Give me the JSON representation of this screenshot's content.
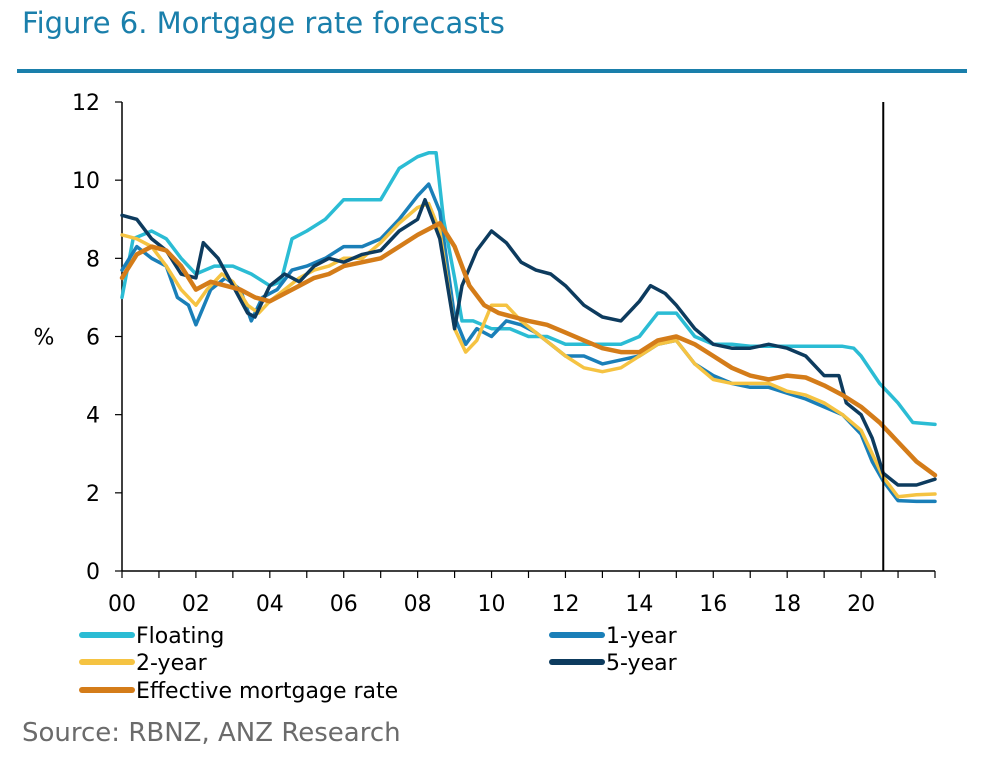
{
  "title": "Figure 6. Mortgage rate forecasts",
  "source": "Source: RBNZ, ANZ Research",
  "chart_data": {
    "type": "line",
    "ylabel": "%",
    "xlim": [
      0,
      22
    ],
    "ylim": [
      0,
      12
    ],
    "y_ticks": [
      0,
      2,
      4,
      6,
      8,
      10,
      12
    ],
    "x_ticks": [
      0,
      2,
      4,
      6,
      8,
      10,
      12,
      14,
      16,
      18,
      20
    ],
    "x_tick_labels": [
      "00",
      "02",
      "04",
      "06",
      "08",
      "10",
      "12",
      "14",
      "16",
      "18",
      "20"
    ],
    "grid": false,
    "legend_placement": "bottom",
    "forecast_marker_x": 20.6,
    "series": [
      {
        "name": "Floating",
        "color": "#2bbcd4",
        "points": [
          [
            0,
            7.0
          ],
          [
            0.3,
            8.5
          ],
          [
            0.8,
            8.7
          ],
          [
            1.2,
            8.5
          ],
          [
            1.6,
            8.0
          ],
          [
            2.0,
            7.6
          ],
          [
            2.5,
            7.8
          ],
          [
            3.0,
            7.8
          ],
          [
            3.5,
            7.6
          ],
          [
            4.0,
            7.3
          ],
          [
            4.3,
            7.4
          ],
          [
            4.6,
            8.5
          ],
          [
            5.0,
            8.7
          ],
          [
            5.5,
            9.0
          ],
          [
            6.0,
            9.5
          ],
          [
            6.5,
            9.5
          ],
          [
            7.0,
            9.5
          ],
          [
            7.5,
            10.3
          ],
          [
            8.0,
            10.6
          ],
          [
            8.3,
            10.7
          ],
          [
            8.5,
            10.7
          ],
          [
            8.7,
            9.0
          ],
          [
            9.0,
            7.5
          ],
          [
            9.2,
            6.4
          ],
          [
            9.5,
            6.4
          ],
          [
            10.0,
            6.2
          ],
          [
            10.5,
            6.2
          ],
          [
            11.0,
            6.0
          ],
          [
            11.5,
            6.0
          ],
          [
            12.0,
            5.8
          ],
          [
            12.5,
            5.8
          ],
          [
            13.0,
            5.8
          ],
          [
            13.5,
            5.8
          ],
          [
            14.0,
            6.0
          ],
          [
            14.5,
            6.6
          ],
          [
            15.0,
            6.6
          ],
          [
            15.5,
            6.0
          ],
          [
            16.0,
            5.8
          ],
          [
            16.5,
            5.8
          ],
          [
            17.0,
            5.75
          ],
          [
            17.5,
            5.75
          ],
          [
            18.0,
            5.75
          ],
          [
            18.5,
            5.75
          ],
          [
            19.0,
            5.75
          ],
          [
            19.5,
            5.75
          ],
          [
            19.8,
            5.7
          ],
          [
            20.0,
            5.5
          ],
          [
            20.5,
            4.8
          ],
          [
            21.0,
            4.3
          ],
          [
            21.4,
            3.8
          ],
          [
            22.0,
            3.75
          ]
        ]
      },
      {
        "name": "1-year",
        "color": "#1a7fb8",
        "points": [
          [
            0,
            7.7
          ],
          [
            0.4,
            8.3
          ],
          [
            0.8,
            8.0
          ],
          [
            1.2,
            7.8
          ],
          [
            1.5,
            7.0
          ],
          [
            1.8,
            6.8
          ],
          [
            2.0,
            6.3
          ],
          [
            2.4,
            7.2
          ],
          [
            2.8,
            7.5
          ],
          [
            3.2,
            7.2
          ],
          [
            3.5,
            6.4
          ],
          [
            3.8,
            7.0
          ],
          [
            4.2,
            7.2
          ],
          [
            4.6,
            7.7
          ],
          [
            5.0,
            7.8
          ],
          [
            5.5,
            8.0
          ],
          [
            6.0,
            8.3
          ],
          [
            6.5,
            8.3
          ],
          [
            7.0,
            8.5
          ],
          [
            7.5,
            9.0
          ],
          [
            8.0,
            9.6
          ],
          [
            8.3,
            9.9
          ],
          [
            8.6,
            9.2
          ],
          [
            9.0,
            6.5
          ],
          [
            9.3,
            5.8
          ],
          [
            9.6,
            6.2
          ],
          [
            10.0,
            6.0
          ],
          [
            10.4,
            6.4
          ],
          [
            10.8,
            6.3
          ],
          [
            11.2,
            6.1
          ],
          [
            11.6,
            5.8
          ],
          [
            12.0,
            5.5
          ],
          [
            12.5,
            5.5
          ],
          [
            13.0,
            5.3
          ],
          [
            13.5,
            5.4
          ],
          [
            14.0,
            5.5
          ],
          [
            14.5,
            5.8
          ],
          [
            15.0,
            5.9
          ],
          [
            15.5,
            5.3
          ],
          [
            16.0,
            5.0
          ],
          [
            16.5,
            4.8
          ],
          [
            17.0,
            4.7
          ],
          [
            17.5,
            4.7
          ],
          [
            18.0,
            4.55
          ],
          [
            18.5,
            4.4
          ],
          [
            19.0,
            4.2
          ],
          [
            19.5,
            4.0
          ],
          [
            20.0,
            3.5
          ],
          [
            20.3,
            2.8
          ],
          [
            20.6,
            2.3
          ],
          [
            21.0,
            1.8
          ],
          [
            21.5,
            1.78
          ],
          [
            22.0,
            1.78
          ]
        ]
      },
      {
        "name": "2-year",
        "color": "#f5c342",
        "points": [
          [
            0,
            8.6
          ],
          [
            0.4,
            8.5
          ],
          [
            0.8,
            8.3
          ],
          [
            1.2,
            7.8
          ],
          [
            1.6,
            7.2
          ],
          [
            2.0,
            6.8
          ],
          [
            2.3,
            7.2
          ],
          [
            2.7,
            7.6
          ],
          [
            3.0,
            7.4
          ],
          [
            3.4,
            6.8
          ],
          [
            3.7,
            6.6
          ],
          [
            4.0,
            6.9
          ],
          [
            4.4,
            7.2
          ],
          [
            4.8,
            7.5
          ],
          [
            5.2,
            7.7
          ],
          [
            5.6,
            7.8
          ],
          [
            6.0,
            8.0
          ],
          [
            6.5,
            8.0
          ],
          [
            7.0,
            8.4
          ],
          [
            7.5,
            8.9
          ],
          [
            8.0,
            9.3
          ],
          [
            8.3,
            9.4
          ],
          [
            8.6,
            8.7
          ],
          [
            9.0,
            6.2
          ],
          [
            9.3,
            5.6
          ],
          [
            9.6,
            5.9
          ],
          [
            10.0,
            6.8
          ],
          [
            10.4,
            6.8
          ],
          [
            10.8,
            6.4
          ],
          [
            11.2,
            6.1
          ],
          [
            11.6,
            5.8
          ],
          [
            12.0,
            5.5
          ],
          [
            12.5,
            5.2
          ],
          [
            13.0,
            5.1
          ],
          [
            13.5,
            5.2
          ],
          [
            14.0,
            5.5
          ],
          [
            14.5,
            5.8
          ],
          [
            15.0,
            5.9
          ],
          [
            15.5,
            5.3
          ],
          [
            16.0,
            4.9
          ],
          [
            16.5,
            4.8
          ],
          [
            17.0,
            4.8
          ],
          [
            17.5,
            4.8
          ],
          [
            18.0,
            4.6
          ],
          [
            18.5,
            4.5
          ],
          [
            19.0,
            4.3
          ],
          [
            19.5,
            4.0
          ],
          [
            20.0,
            3.6
          ],
          [
            20.3,
            3.0
          ],
          [
            20.6,
            2.4
          ],
          [
            21.0,
            1.9
          ],
          [
            21.5,
            1.95
          ],
          [
            22.0,
            1.97
          ]
        ]
      },
      {
        "name": "5-year",
        "color": "#0d3b5e",
        "points": [
          [
            0,
            9.1
          ],
          [
            0.4,
            9.0
          ],
          [
            0.8,
            8.5
          ],
          [
            1.2,
            8.2
          ],
          [
            1.6,
            7.6
          ],
          [
            2.0,
            7.5
          ],
          [
            2.2,
            8.4
          ],
          [
            2.6,
            8.0
          ],
          [
            3.0,
            7.3
          ],
          [
            3.4,
            6.6
          ],
          [
            3.6,
            6.5
          ],
          [
            4.0,
            7.3
          ],
          [
            4.4,
            7.6
          ],
          [
            4.8,
            7.4
          ],
          [
            5.2,
            7.8
          ],
          [
            5.6,
            8.0
          ],
          [
            6.0,
            7.9
          ],
          [
            6.5,
            8.1
          ],
          [
            7.0,
            8.2
          ],
          [
            7.5,
            8.7
          ],
          [
            8.0,
            9.0
          ],
          [
            8.2,
            9.5
          ],
          [
            8.6,
            8.5
          ],
          [
            9.0,
            6.2
          ],
          [
            9.2,
            7.3
          ],
          [
            9.6,
            8.2
          ],
          [
            10.0,
            8.7
          ],
          [
            10.4,
            8.4
          ],
          [
            10.8,
            7.9
          ],
          [
            11.2,
            7.7
          ],
          [
            11.6,
            7.6
          ],
          [
            12.0,
            7.3
          ],
          [
            12.5,
            6.8
          ],
          [
            13.0,
            6.5
          ],
          [
            13.5,
            6.4
          ],
          [
            14.0,
            6.9
          ],
          [
            14.3,
            7.3
          ],
          [
            14.7,
            7.1
          ],
          [
            15.0,
            6.8
          ],
          [
            15.5,
            6.2
          ],
          [
            16.0,
            5.8
          ],
          [
            16.5,
            5.7
          ],
          [
            17.0,
            5.7
          ],
          [
            17.5,
            5.8
          ],
          [
            18.0,
            5.7
          ],
          [
            18.5,
            5.5
          ],
          [
            19.0,
            5.0
          ],
          [
            19.4,
            5.0
          ],
          [
            19.6,
            4.3
          ],
          [
            20.0,
            4.0
          ],
          [
            20.3,
            3.4
          ],
          [
            20.6,
            2.5
          ],
          [
            21.0,
            2.2
          ],
          [
            21.5,
            2.2
          ],
          [
            22.0,
            2.35
          ]
        ]
      },
      {
        "name": "Effective mortgage rate",
        "color": "#d47c19",
        "points": [
          [
            0,
            7.5
          ],
          [
            0.4,
            8.1
          ],
          [
            0.8,
            8.3
          ],
          [
            1.2,
            8.2
          ],
          [
            1.6,
            7.8
          ],
          [
            2.0,
            7.2
          ],
          [
            2.4,
            7.4
          ],
          [
            2.8,
            7.3
          ],
          [
            3.2,
            7.2
          ],
          [
            3.6,
            7.0
          ],
          [
            4.0,
            6.9
          ],
          [
            4.4,
            7.1
          ],
          [
            4.8,
            7.3
          ],
          [
            5.2,
            7.5
          ],
          [
            5.6,
            7.6
          ],
          [
            6.0,
            7.8
          ],
          [
            6.5,
            7.9
          ],
          [
            7.0,
            8.0
          ],
          [
            7.5,
            8.3
          ],
          [
            8.0,
            8.6
          ],
          [
            8.6,
            8.9
          ],
          [
            9.0,
            8.3
          ],
          [
            9.4,
            7.3
          ],
          [
            9.8,
            6.8
          ],
          [
            10.2,
            6.6
          ],
          [
            10.6,
            6.5
          ],
          [
            11.0,
            6.4
          ],
          [
            11.5,
            6.3
          ],
          [
            12.0,
            6.1
          ],
          [
            12.5,
            5.9
          ],
          [
            13.0,
            5.7
          ],
          [
            13.5,
            5.6
          ],
          [
            14.0,
            5.6
          ],
          [
            14.5,
            5.9
          ],
          [
            15.0,
            6.0
          ],
          [
            15.5,
            5.8
          ],
          [
            16.0,
            5.5
          ],
          [
            16.5,
            5.2
          ],
          [
            17.0,
            5.0
          ],
          [
            17.5,
            4.9
          ],
          [
            18.0,
            5.0
          ],
          [
            18.5,
            4.95
          ],
          [
            19.0,
            4.75
          ],
          [
            19.5,
            4.5
          ],
          [
            20.0,
            4.2
          ],
          [
            20.5,
            3.8
          ],
          [
            21.0,
            3.3
          ],
          [
            21.5,
            2.8
          ],
          [
            22.0,
            2.45
          ]
        ]
      }
    ]
  }
}
